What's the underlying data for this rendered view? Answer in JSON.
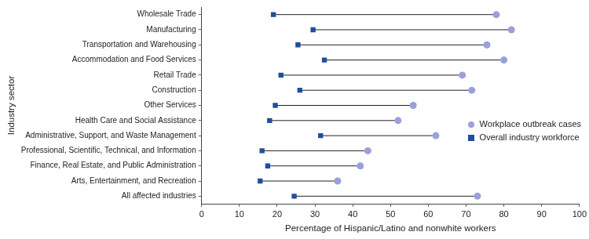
{
  "chart_data": {
    "type": "dumbbell",
    "orientation": "horizontal",
    "x_label": "Percentage of Hispanic/Latino and nonwhite workers",
    "y_label": "Industry sector",
    "categories": [
      "Wholesale Trade",
      "Manufacturing",
      "Transportation and Warehousing",
      "Accommodation and Food Services",
      "Retail Trade",
      "Construction",
      "Other Services",
      "Health Care and Social Assistance",
      "Administrative, Support, and Waste Management",
      "Professional, Scientific, Technical, and Information",
      "Finance, Real Estate, and Public Administration",
      "Arts, Entertainment, and Recreation",
      "All affected industries"
    ],
    "series": [
      {
        "name": "Workplace outbreak cases",
        "color": "#9b9fdb",
        "marker": "circle",
        "values": [
          78,
          82,
          75.5,
          80,
          69,
          71.5,
          56,
          52,
          62,
          44,
          42,
          36,
          73
        ]
      },
      {
        "name": "Overall industry workforce",
        "color": "#1f4e9c",
        "marker": "square",
        "values": [
          19,
          29.5,
          25.5,
          32.5,
          21,
          26,
          19.5,
          18,
          31.5,
          16,
          17.5,
          15.5,
          24.5
        ]
      }
    ],
    "xlim": [
      0,
      100
    ],
    "xticks": [
      0,
      10,
      20,
      30,
      40,
      50,
      60,
      70,
      80,
      90,
      100
    ],
    "grid": false,
    "legend": "right"
  }
}
